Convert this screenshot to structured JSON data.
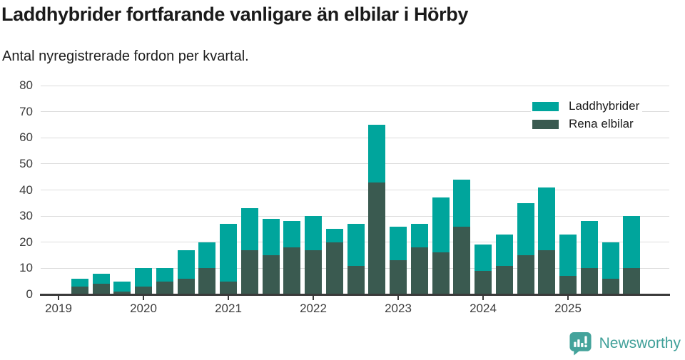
{
  "header": {
    "title": "Laddhybrider fortfarande vanligare än elbilar i Hörby",
    "subtitle": "Antal nyregistrerade fordon per kvartal."
  },
  "chart_data": {
    "type": "bar",
    "variant": "stacked-vertical",
    "x_unit": "quarter",
    "categories": [
      "2019 Q2",
      "2019 Q3",
      "2019 Q4",
      "2020 Q1",
      "2020 Q2",
      "2020 Q3",
      "2020 Q4",
      "2021 Q1",
      "2021 Q2",
      "2021 Q3",
      "2021 Q4",
      "2022 Q1",
      "2022 Q2",
      "2022 Q3",
      "2022 Q4",
      "2023 Q1",
      "2023 Q2",
      "2023 Q3",
      "2023 Q4",
      "2024 Q1",
      "2024 Q2",
      "2024 Q3",
      "2024 Q4",
      "2025 Q1",
      "2025 Q2",
      "2025 Q3",
      "2025 Q4"
    ],
    "series": [
      {
        "name": "Laddhybrider",
        "color": "#00a59c",
        "stack_position": "top",
        "values": [
          3,
          4,
          4,
          7,
          5,
          11,
          10,
          22,
          16,
          14,
          10,
          13,
          5,
          16,
          22,
          13,
          9,
          21,
          18,
          10,
          12,
          20,
          24,
          16,
          18,
          14,
          20
        ]
      },
      {
        "name": "Rena elbilar",
        "color": "#3a5a50",
        "stack_position": "bottom",
        "values": [
          3,
          4,
          1,
          3,
          5,
          6,
          10,
          5,
          17,
          15,
          18,
          17,
          20,
          11,
          43,
          13,
          18,
          16,
          26,
          9,
          11,
          15,
          17,
          7,
          10,
          6,
          10
        ]
      }
    ],
    "stack_totals": [
      6,
      8,
      5,
      10,
      10,
      17,
      20,
      27,
      33,
      29,
      28,
      30,
      25,
      27,
      65,
      26,
      27,
      37,
      44,
      19,
      23,
      35,
      41,
      23,
      28,
      20,
      30
    ],
    "ylim": [
      0,
      80
    ],
    "ytick_step": 10,
    "yticks": [
      0,
      10,
      20,
      30,
      40,
      50,
      60,
      70,
      80
    ],
    "year_tick_labels": [
      "2019",
      "2020",
      "2021",
      "2022",
      "2023",
      "2024",
      "2025"
    ],
    "first_bar_quarter_offset": 1,
    "grid": "horizontal",
    "legend_position": "top-right",
    "axis_color": "#3a3a3a",
    "gridline_color": "#dcdcdc",
    "tick_label_color": "#3d3d3d"
  },
  "footer": {
    "brand": "Newsworthy",
    "brand_color": "#40a099",
    "logo_icon": "speech-bubble-bar-chart-icon"
  }
}
